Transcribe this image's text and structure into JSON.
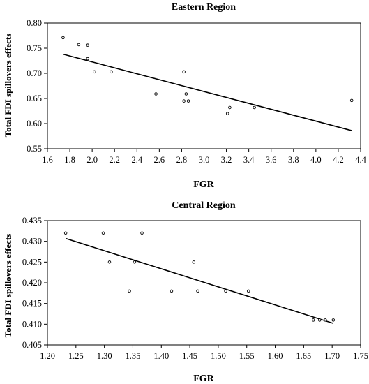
{
  "chart_data": [
    {
      "type": "scatter",
      "title": "Eastern Region",
      "xlabel": "FGR",
      "ylabel": "Total FDI spillovers effects",
      "xlim": [
        1.6,
        4.4
      ],
      "ylim": [
        0.55,
        0.8
      ],
      "xticks": [
        "1.6",
        "1.8",
        "2.0",
        "2.2",
        "2.4",
        "2.6",
        "2.8",
        "3.0",
        "3.2",
        "3.4",
        "3.6",
        "3.8",
        "4.0",
        "4.2",
        "4.4"
      ],
      "yticks": [
        "0.55",
        "0.60",
        "0.65",
        "0.70",
        "0.75",
        "0.80"
      ],
      "grid": false,
      "points": [
        {
          "x": 1.74,
          "y": 0.771
        },
        {
          "x": 1.88,
          "y": 0.757
        },
        {
          "x": 1.96,
          "y": 0.756
        },
        {
          "x": 1.96,
          "y": 0.729
        },
        {
          "x": 2.02,
          "y": 0.703
        },
        {
          "x": 2.17,
          "y": 0.703
        },
        {
          "x": 2.57,
          "y": 0.659
        },
        {
          "x": 2.82,
          "y": 0.703
        },
        {
          "x": 2.82,
          "y": 0.645
        },
        {
          "x": 2.84,
          "y": 0.659
        },
        {
          "x": 2.86,
          "y": 0.645
        },
        {
          "x": 3.21,
          "y": 0.62
        },
        {
          "x": 3.23,
          "y": 0.632
        },
        {
          "x": 3.45,
          "y": 0.632
        },
        {
          "x": 4.32,
          "y": 0.646
        }
      ],
      "trendline": {
        "x": [
          1.74,
          4.32
        ],
        "y": [
          0.738,
          0.586
        ]
      }
    },
    {
      "type": "scatter",
      "title": "Central Region",
      "xlabel": "FGR",
      "ylabel": "Total FDI spillovers effects",
      "xlim": [
        1.2,
        1.75
      ],
      "ylim": [
        0.405,
        0.435
      ],
      "xticks": [
        "1.20",
        "1.25",
        "1.30",
        "1.35",
        "1.40",
        "1.45",
        "1.50",
        "1.55",
        "1.60",
        "1.65",
        "1.70",
        "1.75"
      ],
      "yticks": [
        "0.405",
        "0.410",
        "0.415",
        "0.420",
        "0.425",
        "0.430",
        "0.435"
      ],
      "grid": false,
      "points": [
        {
          "x": 1.232,
          "y": 0.432
        },
        {
          "x": 1.298,
          "y": 0.432
        },
        {
          "x": 1.309,
          "y": 0.425
        },
        {
          "x": 1.344,
          "y": 0.418
        },
        {
          "x": 1.353,
          "y": 0.425
        },
        {
          "x": 1.366,
          "y": 0.432
        },
        {
          "x": 1.418,
          "y": 0.418
        },
        {
          "x": 1.457,
          "y": 0.425
        },
        {
          "x": 1.464,
          "y": 0.418
        },
        {
          "x": 1.513,
          "y": 0.418
        },
        {
          "x": 1.553,
          "y": 0.418
        },
        {
          "x": 1.667,
          "y": 0.411
        },
        {
          "x": 1.678,
          "y": 0.411
        },
        {
          "x": 1.688,
          "y": 0.411
        },
        {
          "x": 1.702,
          "y": 0.411
        }
      ],
      "trendline": {
        "x": [
          1.232,
          1.702
        ],
        "y": [
          0.4307,
          0.4102
        ]
      }
    }
  ]
}
